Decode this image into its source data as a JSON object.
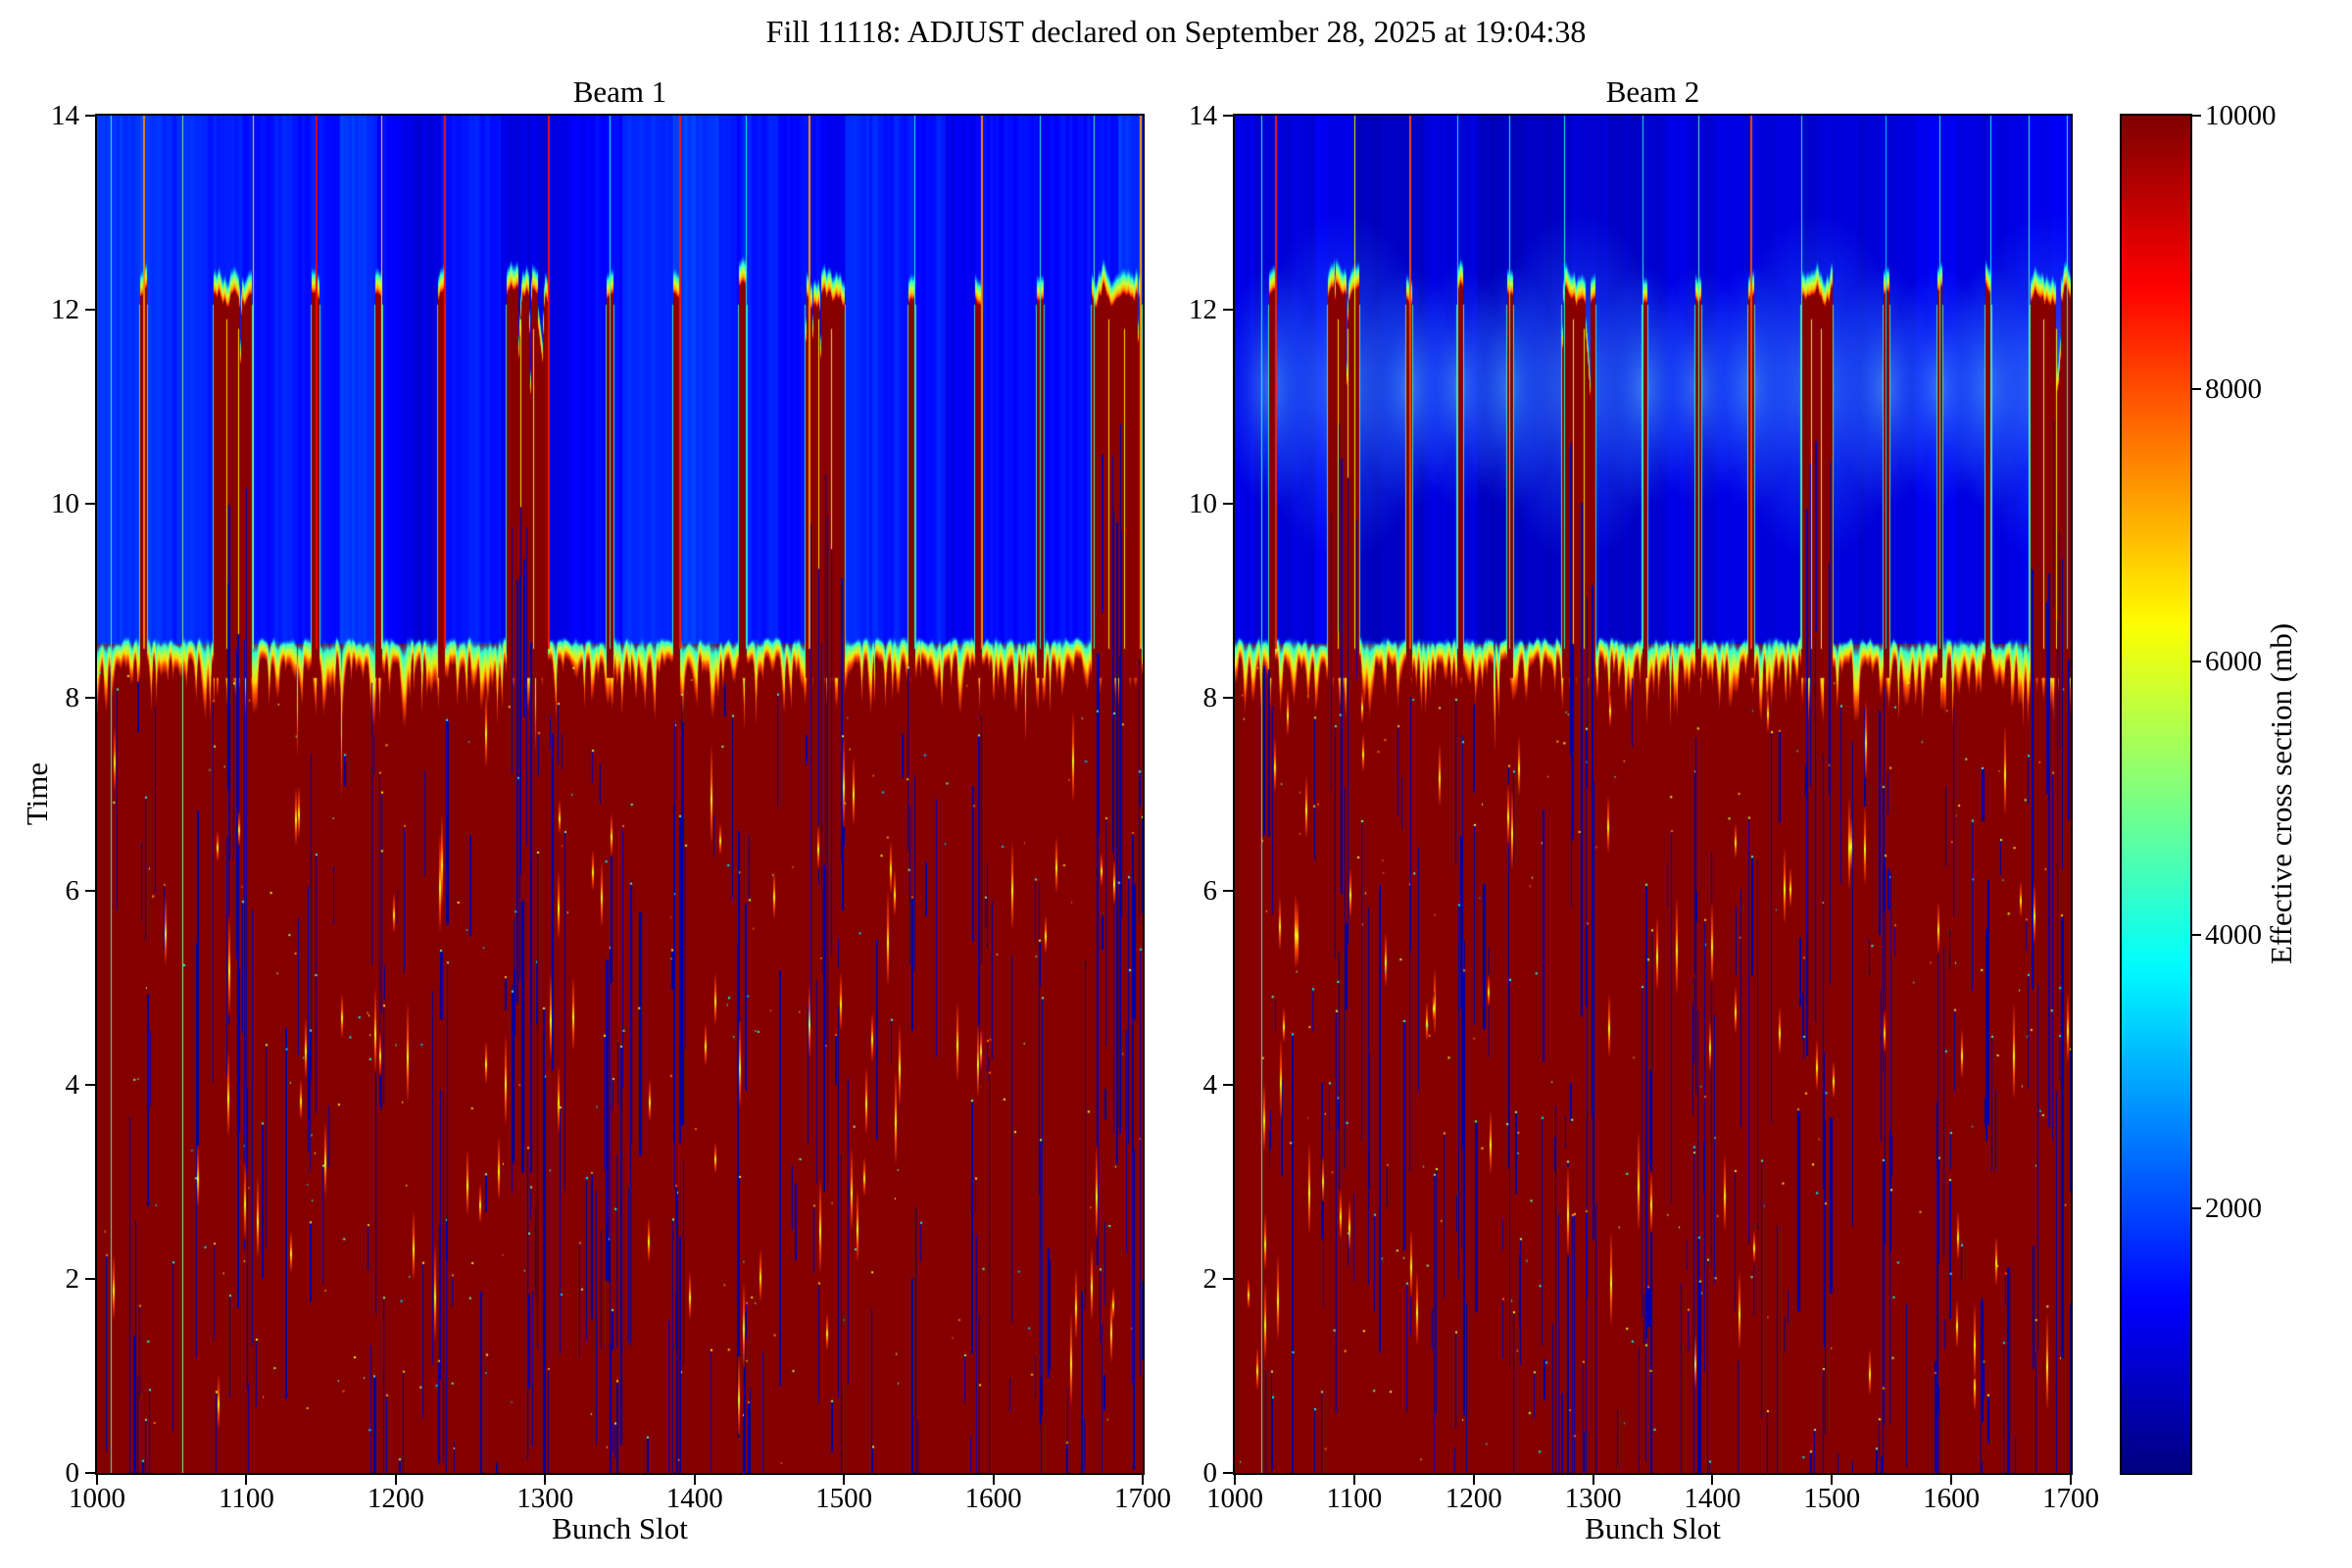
{
  "chart_data": {
    "type": "heatmap",
    "suptitle": "Fill 11118: ADJUST declared on September 28, 2025 at 19:04:38",
    "colormap": "jet",
    "panels": [
      {
        "title": "Beam 1"
      },
      {
        "title": "Beam 2"
      }
    ],
    "x": {
      "label": "Bunch Slot",
      "range": [
        1000,
        1700
      ],
      "ticks": [
        1000,
        1100,
        1200,
        1300,
        1400,
        1500,
        1600,
        1700
      ]
    },
    "y": {
      "label": "Time",
      "range": [
        0,
        14
      ],
      "ticks": [
        0,
        2,
        4,
        6,
        8,
        10,
        12,
        14
      ]
    },
    "colorbar": {
      "label": "Effective cross section (mb)",
      "range": [
        0,
        10000
      ],
      "ticks": [
        2000,
        4000,
        6000,
        8000,
        10000
      ]
    },
    "structure": {
      "high_value": 10000,
      "dump_time": 8.5,
      "train_top_time": 12.2,
      "trains": [
        [
          1029,
          1033
        ],
        [
          1078,
          1103
        ],
        [
          1144,
          1148
        ],
        [
          1186,
          1190
        ],
        [
          1228,
          1232
        ],
        [
          1274,
          1301
        ],
        [
          1341,
          1345
        ],
        [
          1386,
          1390
        ],
        [
          1430,
          1434
        ],
        [
          1474,
          1500
        ],
        [
          1543,
          1547
        ],
        [
          1588,
          1592
        ],
        [
          1629,
          1633
        ],
        [
          1666,
          1699
        ]
      ],
      "beams": [
        {
          "name": "Beam 1",
          "seed": 111,
          "bg_base": 600,
          "bg_var": 1700,
          "glow": false,
          "navy_count": 260,
          "streak_count": 85,
          "speck_count": 190,
          "thin_lines": [
            [
              1009,
              0.45,
              true,
              1
            ],
            [
              1031,
              0.74,
              false,
              2
            ],
            [
              1057,
              0.52,
              true,
              1
            ],
            [
              1104,
              0.6,
              false,
              1
            ],
            [
              1146,
              0.88,
              false,
              2
            ],
            [
              1190,
              0.62,
              false,
              1
            ],
            [
              1232,
              0.86,
              false,
              2
            ],
            [
              1302,
              0.86,
              false,
              2
            ],
            [
              1343,
              0.42,
              false,
              1
            ],
            [
              1390,
              0.85,
              false,
              2
            ],
            [
              1434,
              0.4,
              false,
              1
            ],
            [
              1476,
              0.72,
              false,
              2
            ],
            [
              1547,
              0.4,
              false,
              1
            ],
            [
              1592,
              0.74,
              false,
              2
            ],
            [
              1631,
              0.42,
              false,
              1
            ],
            [
              1667,
              0.45,
              false,
              1
            ],
            [
              1698,
              0.72,
              false,
              2
            ]
          ]
        },
        {
          "name": "Beam 2",
          "seed": 222,
          "bg_base": 480,
          "bg_var": 900,
          "glow": true,
          "navy_count": 240,
          "streak_count": 75,
          "speck_count": 170,
          "thin_lines": [
            [
              1022,
              0.45,
              true,
              1
            ],
            [
              1034,
              0.85,
              false,
              2
            ],
            [
              1100,
              0.62,
              false,
              1
            ],
            [
              1146,
              0.8,
              false,
              2
            ],
            [
              1186,
              0.4,
              false,
              1
            ],
            [
              1230,
              0.45,
              false,
              1
            ],
            [
              1276,
              0.4,
              false,
              1
            ],
            [
              1341,
              0.42,
              false,
              1
            ],
            [
              1388,
              0.45,
              false,
              1
            ],
            [
              1432,
              0.8,
              false,
              2
            ],
            [
              1474,
              0.42,
              false,
              1
            ],
            [
              1545,
              0.35,
              false,
              1
            ],
            [
              1590,
              0.42,
              false,
              1
            ],
            [
              1633,
              0.4,
              false,
              1
            ],
            [
              1665,
              0.45,
              false,
              1
            ],
            [
              1697,
              0.42,
              false,
              1
            ]
          ]
        }
      ]
    }
  }
}
